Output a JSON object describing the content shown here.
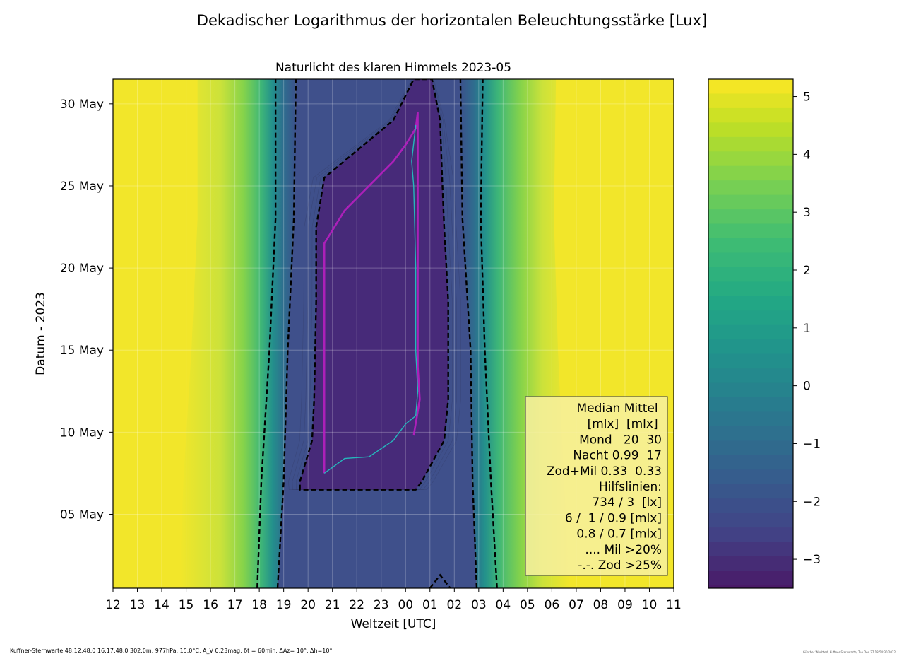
{
  "chart_data": {
    "type": "heatmap",
    "title": "Dekadischer Logarithmus der horizontalen Beleuchtungsstärke [Lux]",
    "subtitle": "Naturlicht des klaren Himmels 2023-05",
    "xlabel": "Weltzeit [UTC]",
    "ylabel": "Datum - 2023",
    "x_ticks": [
      "12",
      "13",
      "14",
      "15",
      "16",
      "17",
      "18",
      "19",
      "20",
      "21",
      "22",
      "23",
      "00",
      "01",
      "02",
      "03",
      "04",
      "05",
      "06",
      "07",
      "08",
      "09",
      "10",
      "11"
    ],
    "y_ticks": [
      "05 May",
      "10 May",
      "15 May",
      "20 May",
      "25 May",
      "30 May"
    ],
    "y_tick_days": [
      5,
      10,
      15,
      20,
      25,
      30
    ],
    "ylim": [
      0.5,
      31.5
    ],
    "xlim_hours_after_noon": [
      0,
      23
    ],
    "grid": true,
    "colorbar": {
      "ticks": [
        "5",
        "4",
        "3",
        "2",
        "1",
        "0",
        "−1",
        "−2",
        "−3"
      ],
      "tick_values": [
        5,
        4,
        3,
        2,
        1,
        0,
        -1,
        -2,
        -3
      ],
      "range": [
        -3.5,
        5.3
      ]
    },
    "contour_734lx": [
      {
        "day": 0.5,
        "evening": "17:55",
        "morning": "03:45"
      },
      {
        "day": 7,
        "evening": "18:05",
        "morning": "03:30"
      },
      {
        "day": 15,
        "evening": "18:25",
        "morning": "03:15"
      },
      {
        "day": 23,
        "evening": "18:40",
        "morning": "03:05"
      },
      {
        "day": 31.5,
        "evening": "18:40",
        "morning": "03:10"
      }
    ],
    "contour_3lx": [
      {
        "day": 0.5,
        "evening": "18:45",
        "morning": "02:55"
      },
      {
        "day": 7,
        "evening": "19:00",
        "morning": "02:45"
      },
      {
        "day": 15,
        "evening": "19:10",
        "morning": "02:40"
      },
      {
        "day": 23,
        "evening": "19:25",
        "morning": "02:20"
      },
      {
        "day": 31.5,
        "evening": "19:30",
        "morning": "02:15"
      }
    ],
    "contour_6mlx_nights": [
      {
        "day": 6.5,
        "evening": "19:40",
        "morning": "00:25"
      },
      {
        "day": 7,
        "evening": "19:40",
        "morning": "00:40"
      },
      {
        "day": 9.5,
        "evening": "20:10",
        "morning": "01:35"
      },
      {
        "day": 12,
        "evening": "20:15",
        "morning": "01:45"
      },
      {
        "day": 18,
        "evening": "20:20",
        "morning": "01:45"
      },
      {
        "day": 22.5,
        "evening": "20:20",
        "morning": "01:35"
      },
      {
        "day": 25.5,
        "evening": "20:40",
        "morning": "01:30"
      },
      {
        "day": 29,
        "evening": "23:30",
        "morning": "01:25"
      },
      {
        "day": 31.5,
        "evening": "00:20",
        "morning": "01:05"
      }
    ],
    "series": [
      {
        "name": "Mil >20%",
        "points": [
          [
            7.5,
            "20:40"
          ],
          [
            12,
            "20:40"
          ],
          [
            18,
            "20:40"
          ],
          [
            21.5,
            "20:40"
          ],
          [
            23.5,
            "21:30"
          ],
          [
            25,
            "22:30"
          ],
          [
            26.5,
            "23:30"
          ],
          [
            27.5,
            "00:00"
          ],
          [
            28.5,
            "00:25"
          ],
          [
            29.5,
            "00:30"
          ],
          [
            25,
            "00:30"
          ],
          [
            20,
            "00:30"
          ],
          [
            14,
            "00:30"
          ],
          [
            12,
            "00:35"
          ],
          [
            9.8,
            "00:20"
          ]
        ]
      },
      {
        "name": "Zod >25%",
        "points": [
          [
            7.5,
            "20:40"
          ],
          [
            8.4,
            "21:30"
          ],
          [
            8.5,
            "22:30"
          ],
          [
            9.5,
            "23:30"
          ],
          [
            10.5,
            "00:00"
          ],
          [
            11,
            "00:25"
          ],
          [
            12.5,
            "00:30"
          ],
          [
            15,
            "00:25"
          ],
          [
            20,
            "00:25"
          ],
          [
            25,
            "00:20"
          ],
          [
            26.5,
            "00:15"
          ],
          [
            28.7,
            "00:25"
          ]
        ]
      }
    ]
  },
  "legend": {
    "lines": [
      "Median Mittel ",
      "[mlx]  [mlx] ",
      "Mond   20  30",
      "Nacht 0.99  17",
      "Zod+Mil 0.33  0.33",
      "Hilfslinien:",
      "734 / 3  [lx]",
      "6 /  1 / 0.9 [mlx]",
      "0.8 / 0.7 [mlx]",
      ".... Mil >20%",
      "-.-. Zod >25%"
    ]
  },
  "footer": {
    "left": "Kuffner-Sternwarte 48:12:48.0 16:17:48.0 302.0m,  977hPa, 15.0°C, A_V 0.23mag, δt = 60min, ΔAz= 10°, Δh=10°",
    "right": "Günther Wuchterl, Kuffner-Sternwarte, Tue Dec 27 18:54:30 2022"
  },
  "colors": {
    "yellow": "#f2e52a",
    "green": "#7dd24d",
    "teal": "#2c9c8c",
    "blue_dark": "#3d508a",
    "purple": "#4b2a78",
    "mil_line": "#b71fc0",
    "zod_line": "#22c5c2",
    "legend_bg": "#f7f0a0"
  }
}
